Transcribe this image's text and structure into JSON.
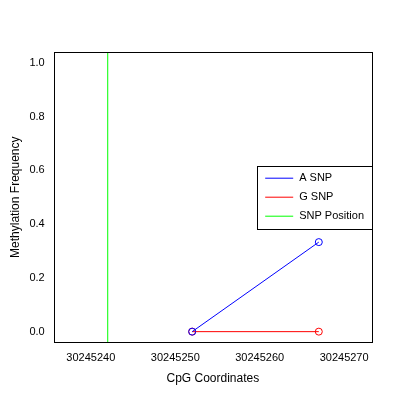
{
  "chart_data": {
    "type": "line",
    "x_label": "CpG Coordinates",
    "y_label": "Methylation Frequency",
    "x": [
      30245252,
      30245267
    ],
    "series": [
      {
        "name": "A SNP",
        "color": "#0000ff",
        "values": [
          0,
          0.333
        ],
        "marker": "circle"
      },
      {
        "name": "G SNP",
        "color": "#ff0000",
        "values": [
          0,
          0
        ],
        "marker": "circle"
      }
    ],
    "snp_position": {
      "name": "SNP Position",
      "color": "#00ff00",
      "x": 30245242
    },
    "xlim": [
      30245235.6,
      30245273.3
    ],
    "xticks": [
      30245240,
      30245250,
      30245260,
      30245270
    ],
    "ylim": [
      -0.04,
      1.04
    ],
    "yticks": [
      {
        "value": 0,
        "label": "0.0"
      },
      0.2,
      0.4,
      0.6,
      0.8,
      {
        "value": 1,
        "label": "1.0"
      }
    ],
    "grid": false,
    "legend": "right"
  }
}
